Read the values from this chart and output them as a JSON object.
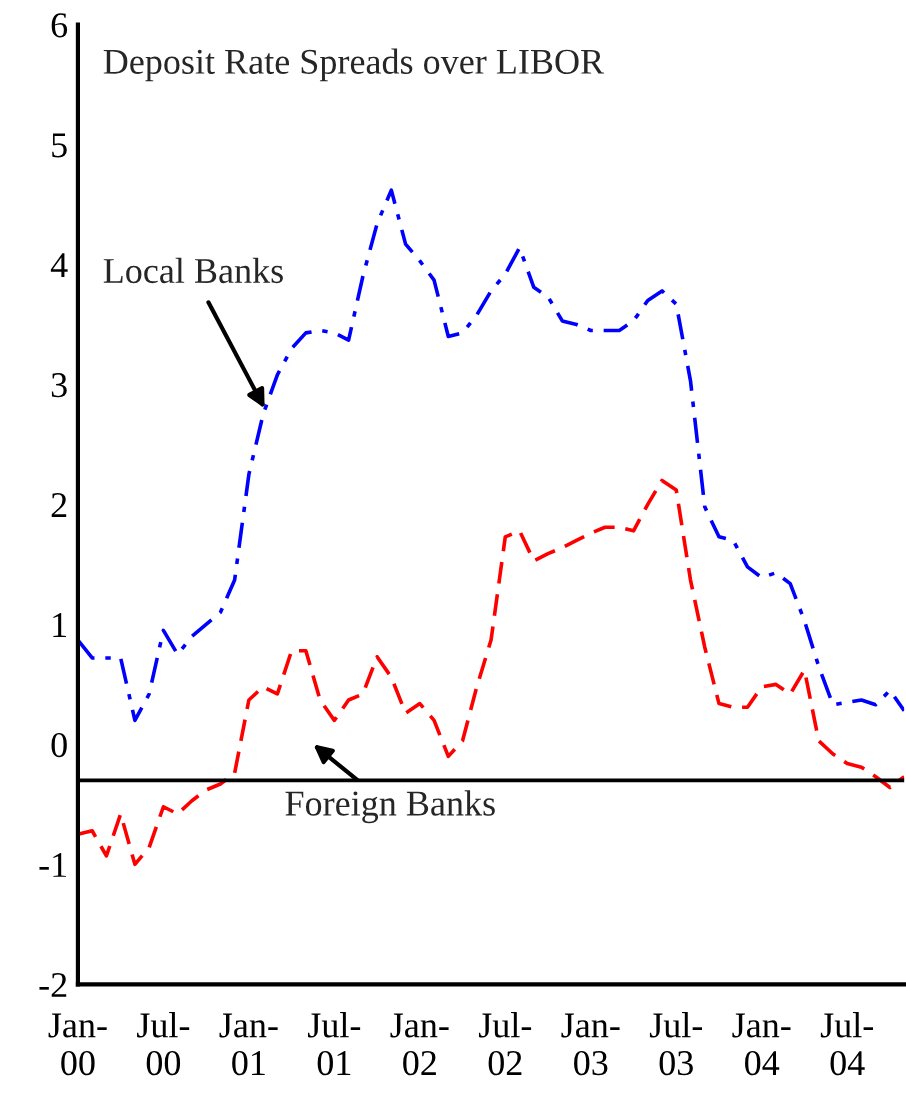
{
  "chart_data": {
    "type": "line",
    "title": "Deposit Rate Spreads over LIBOR",
    "categories": [
      "Jan-\n00",
      null,
      null,
      null,
      null,
      null,
      "Jul-\n00",
      null,
      null,
      null,
      null,
      null,
      "Jan-\n01",
      null,
      null,
      null,
      null,
      null,
      "Jul-\n01",
      null,
      null,
      null,
      null,
      null,
      "Jan-\n02",
      null,
      null,
      null,
      null,
      null,
      "Jul-\n02",
      null,
      null,
      null,
      null,
      null,
      "Jan-\n03",
      null,
      null,
      null,
      null,
      null,
      "Jul-\n03",
      null,
      null,
      null,
      null,
      null,
      "Jan-\n04",
      null,
      null,
      null,
      null,
      null,
      "Jul-\n04",
      null,
      null,
      null,
      null
    ],
    "series": [
      {
        "name": "Local Banks",
        "color": "#0000ff",
        "line_style": "dashdot",
        "values": [
          0.87,
          0.72,
          0.72,
          0.72,
          0.2,
          0.42,
          0.95,
          0.75,
          0.9,
          1.0,
          1.1,
          1.37,
          2.25,
          2.75,
          3.08,
          3.3,
          3.43,
          3.45,
          3.43,
          3.37,
          3.9,
          4.34,
          4.62,
          4.17,
          4.03,
          3.87,
          3.4,
          3.43,
          3.58,
          3.78,
          3.92,
          4.14,
          3.81,
          3.73,
          3.53,
          3.5,
          3.45,
          3.45,
          3.45,
          3.53,
          3.7,
          3.78,
          3.67,
          3.03,
          1.98,
          1.73,
          1.7,
          1.48,
          1.39,
          1.43,
          1.34,
          1.03,
          0.65,
          0.33,
          0.35,
          0.37,
          0.33,
          0.45,
          0.28
        ]
      },
      {
        "name": "Foreign Banks",
        "color": "#ff0000",
        "line_style": "dashed",
        "values": [
          -0.75,
          -0.72,
          -0.93,
          -0.58,
          -1.0,
          -0.86,
          -0.52,
          -0.58,
          -0.47,
          -0.38,
          -0.33,
          -0.24,
          0.37,
          0.48,
          0.42,
          0.78,
          0.78,
          0.37,
          0.2,
          0.37,
          0.42,
          0.73,
          0.56,
          0.26,
          0.34,
          0.2,
          -0.1,
          0.03,
          0.48,
          0.87,
          1.73,
          1.78,
          1.53,
          1.59,
          1.64,
          1.7,
          1.76,
          1.81,
          1.81,
          1.78,
          2.0,
          2.2,
          2.12,
          1.37,
          0.81,
          0.34,
          0.31,
          0.31,
          0.48,
          0.5,
          0.42,
          0.62,
          0.03,
          -0.08,
          -0.16,
          -0.19,
          -0.27,
          -0.36,
          -0.27
        ]
      }
    ],
    "ylim": [
      -2,
      6
    ],
    "yticks": [
      -2,
      -1,
      0,
      1,
      2,
      3,
      4,
      5,
      6
    ],
    "ref_lines": [
      {
        "axis": "y",
        "value": -0.3,
        "color": "#000000"
      }
    ],
    "grid": false,
    "legend": false,
    "marker": "none"
  }
}
